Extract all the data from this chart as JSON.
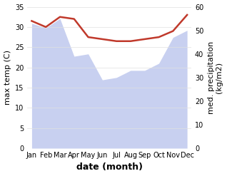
{
  "months": [
    "Jan",
    "Feb",
    "Mar",
    "Apr",
    "May",
    "Jun",
    "Jul",
    "Aug",
    "Sep",
    "Oct",
    "Nov",
    "Dec"
  ],
  "month_indices": [
    0,
    1,
    2,
    3,
    4,
    5,
    6,
    7,
    8,
    9,
    10,
    11
  ],
  "temperature": [
    31.5,
    30.0,
    32.5,
    32.0,
    27.5,
    27.0,
    26.5,
    26.5,
    27.0,
    27.5,
    29.0,
    33.0
  ],
  "precipitation": [
    53.0,
    51.0,
    55.0,
    39.0,
    40.0,
    29.0,
    30.0,
    33.0,
    33.0,
    36.0,
    47.0,
    50.0
  ],
  "temp_color": "#c0392b",
  "precip_fill_color": "#c8d0f0",
  "temp_ylim": [
    0,
    35
  ],
  "precip_ylim": [
    0,
    60
  ],
  "temp_yticks": [
    0,
    5,
    10,
    15,
    20,
    25,
    30,
    35
  ],
  "precip_yticks": [
    0,
    10,
    20,
    30,
    40,
    50,
    60
  ],
  "xlabel": "date (month)",
  "ylabel_left": "max temp (C)",
  "ylabel_right": "med. precipitation\n(kg/m2)",
  "axis_fontsize": 8,
  "tick_fontsize": 7,
  "xlabel_fontsize": 9,
  "background_color": "#ffffff",
  "grid_color": "#e0e0e0"
}
